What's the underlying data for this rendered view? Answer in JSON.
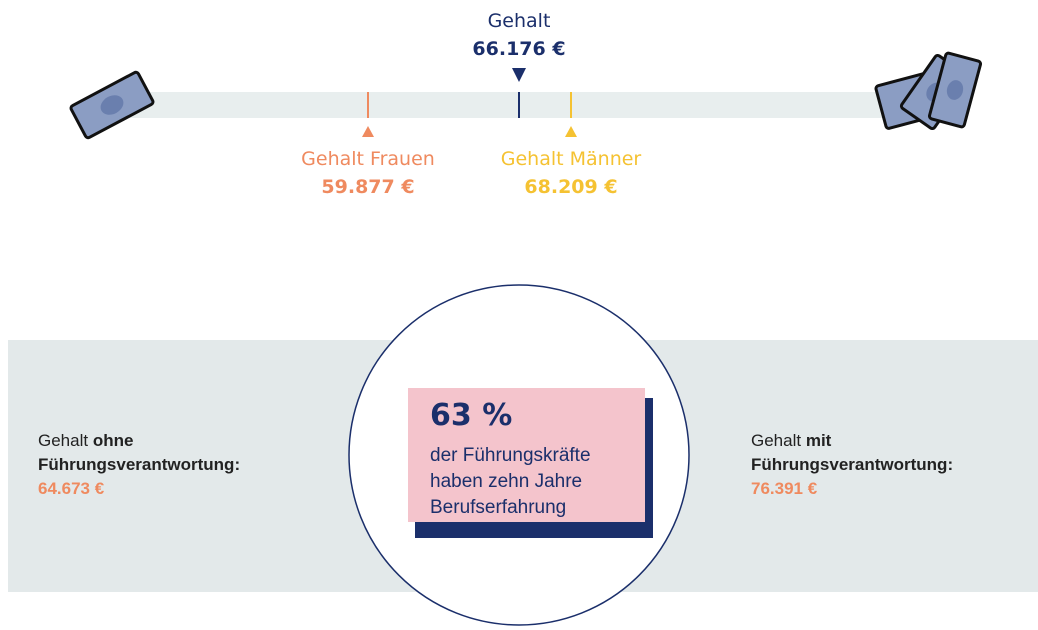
{
  "salary_scale": {
    "overall": {
      "label": "Gehalt",
      "value": "66.176 €"
    },
    "women": {
      "label": "Gehalt Frauen",
      "value": "59.877 €"
    },
    "men": {
      "label": "Gehalt Männer",
      "value": "68.209 €"
    }
  },
  "leadership": {
    "without": {
      "prefix": "Gehalt",
      "emphasis": "ohne",
      "line2": "Führungsverantwortung:",
      "value": "64.673 €"
    },
    "highlight": {
      "value": "63 %",
      "text": "der Führungskräfte haben zehn Jahre Berufserfahrung"
    },
    "with": {
      "prefix": "Gehalt",
      "emphasis": "mit",
      "line2": "Führungsverantwortung:",
      "value": "76.391 €"
    }
  }
}
